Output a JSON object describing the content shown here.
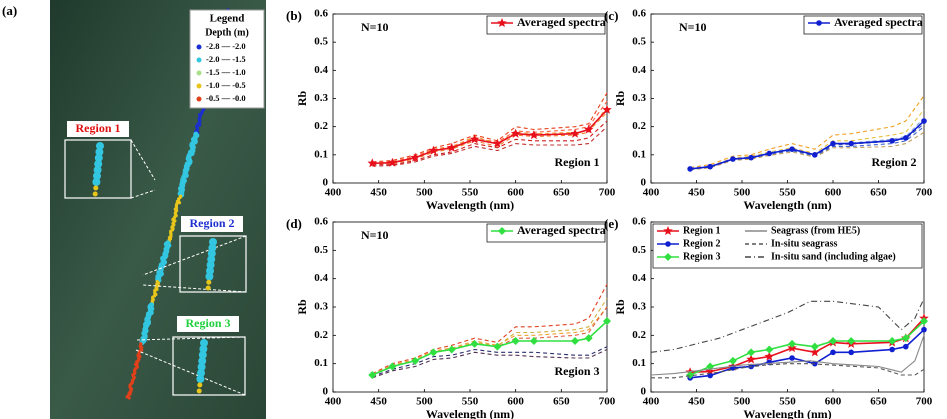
{
  "panel_a": {
    "label": "(a)",
    "legend": {
      "title": "Legend",
      "subtitle": "Depth (m)",
      "items": [
        {
          "label": "-2.8 — -2.0",
          "color": "#1a2fd0"
        },
        {
          "label": "-2.0 — -1.5",
          "color": "#33c6e0"
        },
        {
          "label": "-1.5 — -1.0",
          "color": "#a8e08a"
        },
        {
          "label": "-1.0 — -0.5",
          "color": "#e8c51b"
        },
        {
          "label": "-0.5 — -0.0",
          "color": "#e0401a"
        }
      ]
    },
    "regions": [
      {
        "label": "Region 1",
        "color": "#e01010"
      },
      {
        "label": "Region 2",
        "color": "#2030d0"
      },
      {
        "label": "Region 3",
        "color": "#20d040"
      }
    ]
  },
  "chart_data": [
    {
      "type": "line",
      "title": "(b)",
      "annotation": "N=10",
      "region_label": "Region 1",
      "xlabel": "Wavelength (nm)",
      "ylabel": "Rb",
      "x": [
        443,
        465,
        490,
        510,
        530,
        555,
        580,
        600,
        620,
        665,
        680,
        700
      ],
      "xlim": [
        400,
        700
      ],
      "ylim": [
        0,
        0.6
      ],
      "xticks": [
        400,
        450,
        500,
        550,
        600,
        650,
        700
      ],
      "yticks": [
        0,
        0.1,
        0.2,
        0.3,
        0.4,
        0.5,
        0.6
      ],
      "legend": "upper right",
      "series": [
        {
          "color": "#e8401c",
          "dash": "dashed",
          "values": [
            0.075,
            0.08,
            0.1,
            0.125,
            0.14,
            0.17,
            0.15,
            0.2,
            0.19,
            0.2,
            0.21,
            0.32
          ]
        },
        {
          "color": "#f08030",
          "dash": "dashed",
          "values": [
            0.068,
            0.07,
            0.085,
            0.11,
            0.12,
            0.15,
            0.13,
            0.17,
            0.165,
            0.17,
            0.18,
            0.27
          ]
        },
        {
          "color": "#d02020",
          "dash": "dashed",
          "values": [
            0.065,
            0.065,
            0.08,
            0.1,
            0.11,
            0.14,
            0.125,
            0.155,
            0.15,
            0.15,
            0.16,
            0.22
          ]
        },
        {
          "color": "#ff6040",
          "dash": "dashed",
          "values": [
            0.072,
            0.075,
            0.095,
            0.12,
            0.13,
            0.16,
            0.145,
            0.185,
            0.18,
            0.19,
            0.2,
            0.29
          ]
        },
        {
          "color": "#c03030",
          "dash": "dashed",
          "values": [
            0.06,
            0.062,
            0.075,
            0.095,
            0.105,
            0.13,
            0.115,
            0.14,
            0.135,
            0.135,
            0.14,
            0.2
          ]
        },
        {
          "color": "#f0a040",
          "dash": "dashed",
          "values": [
            0.07,
            0.073,
            0.09,
            0.118,
            0.128,
            0.165,
            0.14,
            0.18,
            0.175,
            0.18,
            0.185,
            0.25
          ]
        },
        {
          "name": "Averaged spectra",
          "color": "#e8101c",
          "marker": "star",
          "values": [
            0.07,
            0.072,
            0.09,
            0.115,
            0.125,
            0.155,
            0.14,
            0.175,
            0.17,
            0.175,
            0.19,
            0.26
          ]
        }
      ]
    },
    {
      "type": "line",
      "title": "(c)",
      "annotation": "N=10",
      "region_label": "Region 2",
      "xlabel": "Wavelength (nm)",
      "ylabel": "Rb",
      "x": [
        443,
        465,
        490,
        510,
        530,
        555,
        580,
        600,
        620,
        665,
        680,
        700
      ],
      "xlim": [
        400,
        700
      ],
      "ylim": [
        0,
        0.6
      ],
      "xticks": [
        400,
        450,
        500,
        550,
        600,
        650,
        700
      ],
      "yticks": [
        0,
        0.1,
        0.2,
        0.3,
        0.4,
        0.5,
        0.6
      ],
      "legend": "upper right",
      "series": [
        {
          "color": "#f0a020",
          "dash": "dashed",
          "values": [
            0.055,
            0.065,
            0.095,
            0.1,
            0.12,
            0.14,
            0.12,
            0.17,
            0.175,
            0.2,
            0.22,
            0.31
          ]
        },
        {
          "color": "#e8c040",
          "dash": "dashed",
          "values": [
            0.05,
            0.06,
            0.088,
            0.095,
            0.11,
            0.125,
            0.105,
            0.15,
            0.15,
            0.17,
            0.18,
            0.26
          ]
        },
        {
          "color": "#4060d0",
          "dash": "dashed",
          "values": [
            0.048,
            0.055,
            0.082,
            0.088,
            0.1,
            0.115,
            0.095,
            0.13,
            0.13,
            0.14,
            0.15,
            0.2
          ]
        },
        {
          "color": "#80a0e0",
          "dash": "dashed",
          "values": [
            0.052,
            0.06,
            0.087,
            0.092,
            0.108,
            0.122,
            0.1,
            0.14,
            0.142,
            0.155,
            0.165,
            0.23
          ]
        },
        {
          "color": "#c0a060",
          "dash": "dashed",
          "values": [
            0.047,
            0.054,
            0.08,
            0.085,
            0.098,
            0.11,
            0.092,
            0.125,
            0.125,
            0.13,
            0.14,
            0.18
          ]
        },
        {
          "color": "#3050b0",
          "dash": "dashed",
          "values": [
            0.05,
            0.057,
            0.084,
            0.09,
            0.104,
            0.118,
            0.098,
            0.135,
            0.138,
            0.148,
            0.158,
            0.21
          ]
        },
        {
          "name": "Averaged spectra",
          "color": "#1020d0",
          "marker": "circle",
          "values": [
            0.05,
            0.058,
            0.085,
            0.09,
            0.105,
            0.12,
            0.1,
            0.14,
            0.14,
            0.15,
            0.16,
            0.22
          ]
        }
      ]
    },
    {
      "type": "line",
      "title": "(d)",
      "annotation": "N=10",
      "region_label": "Region 3",
      "xlabel": "Wavelength (nm)",
      "ylabel": "Rb",
      "x": [
        443,
        465,
        490,
        510,
        530,
        555,
        580,
        600,
        620,
        665,
        680,
        700
      ],
      "xlim": [
        400,
        700
      ],
      "ylim": [
        0,
        0.6
      ],
      "xticks": [
        400,
        450,
        500,
        550,
        600,
        650,
        700
      ],
      "yticks": [
        0,
        0.1,
        0.2,
        0.3,
        0.4,
        0.5,
        0.6
      ],
      "legend": "upper right",
      "series": [
        {
          "color": "#e04020",
          "dash": "dashed",
          "values": [
            0.065,
            0.1,
            0.12,
            0.15,
            0.165,
            0.19,
            0.175,
            0.23,
            0.23,
            0.24,
            0.26,
            0.38
          ]
        },
        {
          "color": "#f0a030",
          "dash": "dashed",
          "values": [
            0.062,
            0.095,
            0.115,
            0.145,
            0.155,
            0.18,
            0.165,
            0.2,
            0.2,
            0.21,
            0.22,
            0.3
          ]
        },
        {
          "color": "#503050",
          "dash": "dashed",
          "values": [
            0.05,
            0.075,
            0.09,
            0.115,
            0.12,
            0.14,
            0.13,
            0.13,
            0.125,
            0.12,
            0.12,
            0.15
          ]
        },
        {
          "color": "#303070",
          "dash": "dashed",
          "values": [
            0.055,
            0.08,
            0.1,
            0.125,
            0.13,
            0.15,
            0.14,
            0.14,
            0.14,
            0.13,
            0.13,
            0.16
          ]
        },
        {
          "color": "#e06040",
          "dash": "dashed",
          "values": [
            0.06,
            0.09,
            0.11,
            0.14,
            0.15,
            0.17,
            0.16,
            0.19,
            0.19,
            0.2,
            0.21,
            0.3
          ]
        },
        {
          "color": "#d0b040",
          "dash": "dashed",
          "values": [
            0.063,
            0.092,
            0.112,
            0.142,
            0.152,
            0.175,
            0.162,
            0.21,
            0.21,
            0.22,
            0.23,
            0.33
          ]
        },
        {
          "name": "Averaged spectra",
          "color": "#30e040",
          "marker": "diamond",
          "values": [
            0.06,
            0.09,
            0.11,
            0.14,
            0.15,
            0.17,
            0.16,
            0.18,
            0.18,
            0.18,
            0.19,
            0.25
          ]
        }
      ]
    },
    {
      "type": "line",
      "title": "(e)",
      "xlabel": "Wavelength (nm)",
      "ylabel": "Rb",
      "x": [
        443,
        465,
        490,
        510,
        530,
        555,
        580,
        600,
        620,
        665,
        680,
        700
      ],
      "xlim": [
        400,
        700
      ],
      "ylim": [
        0,
        0.6
      ],
      "xticks": [
        400,
        450,
        500,
        550,
        600,
        650,
        700
      ],
      "yticks": [
        0,
        0.1,
        0.2,
        0.3,
        0.4,
        0.5,
        0.6
      ],
      "legend": "upper left",
      "series": [
        {
          "name": "Region 1",
          "color": "#e8101c",
          "marker": "star",
          "values": [
            0.07,
            0.072,
            0.09,
            0.115,
            0.125,
            0.155,
            0.14,
            0.175,
            0.17,
            0.175,
            0.19,
            0.26
          ]
        },
        {
          "name": "Region 2",
          "color": "#1020d0",
          "marker": "circle",
          "values": [
            0.05,
            0.058,
            0.085,
            0.09,
            0.105,
            0.12,
            0.1,
            0.14,
            0.14,
            0.15,
            0.16,
            0.22
          ]
        },
        {
          "name": "Region 3",
          "color": "#30e040",
          "marker": "diamond",
          "values": [
            0.06,
            0.09,
            0.11,
            0.14,
            0.15,
            0.17,
            0.16,
            0.18,
            0.18,
            0.18,
            0.19,
            0.25
          ]
        },
        {
          "name": "Seagrass (from HE5)",
          "color": "#888888",
          "dash": "solid",
          "x": [
            400,
            425,
            450,
            475,
            500,
            525,
            550,
            575,
            600,
            625,
            650,
            675,
            690,
            700
          ],
          "values": [
            0.06,
            0.065,
            0.075,
            0.085,
            0.095,
            0.1,
            0.105,
            0.11,
            0.1,
            0.095,
            0.09,
            0.07,
            0.11,
            0.2
          ]
        },
        {
          "name": "In-situ seagrass",
          "color": "#555555",
          "dash": "dashed",
          "x": [
            400,
            425,
            450,
            475,
            500,
            525,
            550,
            575,
            600,
            625,
            650,
            675,
            690,
            700
          ],
          "values": [
            0.05,
            0.05,
            0.06,
            0.07,
            0.085,
            0.095,
            0.1,
            0.1,
            0.095,
            0.09,
            0.085,
            0.06,
            0.06,
            0.08
          ]
        },
        {
          "name": "In-situ sand (including algae)",
          "color": "#444444",
          "dash": "dashdot",
          "x": [
            400,
            425,
            450,
            475,
            500,
            525,
            550,
            575,
            600,
            625,
            650,
            675,
            690,
            700
          ],
          "values": [
            0.14,
            0.15,
            0.17,
            0.19,
            0.22,
            0.25,
            0.28,
            0.32,
            0.32,
            0.31,
            0.3,
            0.22,
            0.26,
            0.33
          ]
        }
      ]
    }
  ]
}
